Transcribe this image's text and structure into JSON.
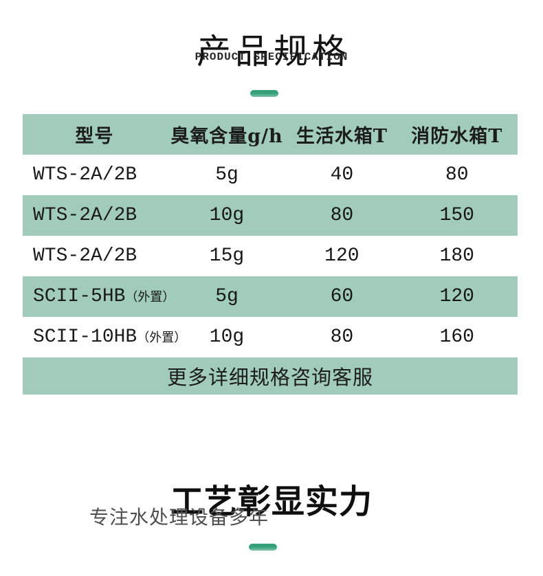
{
  "header": {
    "title": "产品规格",
    "subtitle": "PRODUCT SPECIFICATION"
  },
  "table": {
    "headers": [
      "型号",
      "臭氧含量g/h",
      "生活水箱T",
      "消防水箱T"
    ],
    "rows": [
      {
        "model": "WTS-2A/2B",
        "note": "",
        "ozone": "5g",
        "domestic_tank": "40",
        "fire_tank": "80"
      },
      {
        "model": "WTS-2A/2B",
        "note": "",
        "ozone": "10g",
        "domestic_tank": "80",
        "fire_tank": "150"
      },
      {
        "model": "WTS-2A/2B",
        "note": "",
        "ozone": "15g",
        "domestic_tank": "120",
        "fire_tank": "180"
      },
      {
        "model": "SCII-5HB",
        "note": "（外置）",
        "ozone": "5g",
        "domestic_tank": "60",
        "fire_tank": "120"
      },
      {
        "model": "SCII-10HB",
        "note": "（外置）",
        "ozone": "10g",
        "domestic_tank": "80",
        "fire_tank": "160"
      }
    ],
    "footer_note": "更多详细规格咨询客服"
  },
  "craft_section": {
    "title": "工艺彰显实力",
    "subtitle": "专注水处理设备多年"
  },
  "colors": {
    "band_green": "#a1ccbc",
    "dash_green_dark": "#34a078",
    "dash_green_light": "#7cc4a4"
  }
}
